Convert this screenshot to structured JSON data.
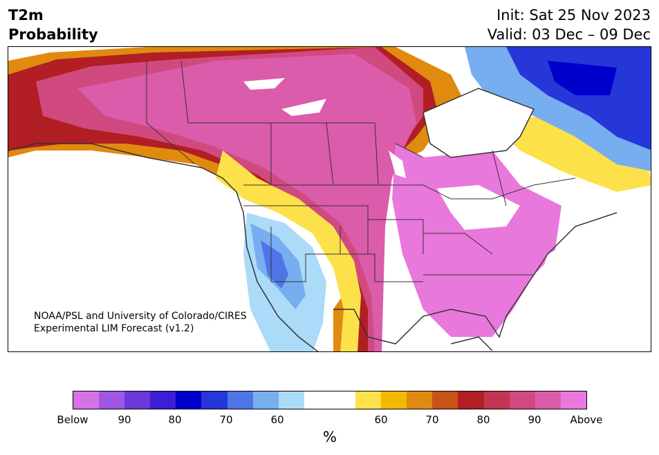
{
  "title": {
    "left_line1": "T2m",
    "left_line2": "Probability",
    "init": "Init: Sat 25 Nov 2023",
    "valid": "Valid: 03 Dec – 09 Dec"
  },
  "credit": {
    "line1": "NOAA/PSL and University of Colorado/CIRES",
    "line2": "Experimental LIM Forecast (v1.2)"
  },
  "colorbar": {
    "unit": "%",
    "below_colors": [
      "#d672e8",
      "#9f56e0",
      "#6c38d8",
      "#3a1fd6",
      "#0000cc",
      "#2537d8",
      "#4f74e6",
      "#76aef0",
      "#acdaf9"
    ],
    "neutral_color": "#ffffff",
    "above_colors": [
      "#fde14a",
      "#f4b800",
      "#e08a10",
      "#c95318",
      "#b11e23",
      "#c23552",
      "#d04a7f",
      "#da5cab",
      "#e978dc"
    ],
    "tick_labels": [
      "Below",
      "90",
      "80",
      "70",
      "60",
      "60",
      "70",
      "80",
      "90",
      "Above"
    ]
  },
  "map": {
    "colors": {
      "above_max": "#e978dc",
      "above_90": "#da5cab",
      "above_85": "#d04a7f",
      "above_80": "#c23552",
      "above_75": "#b11e23",
      "above_70": "#c95318",
      "above_65": "#e08a10",
      "above_60": "#f4b800",
      "above_55": "#fde14a",
      "below_55": "#acdaf9",
      "below_60": "#76aef0",
      "below_65": "#4f74e6",
      "below_70": "#2537d8",
      "below_75": "#0000cc",
      "border": "#333333"
    }
  }
}
